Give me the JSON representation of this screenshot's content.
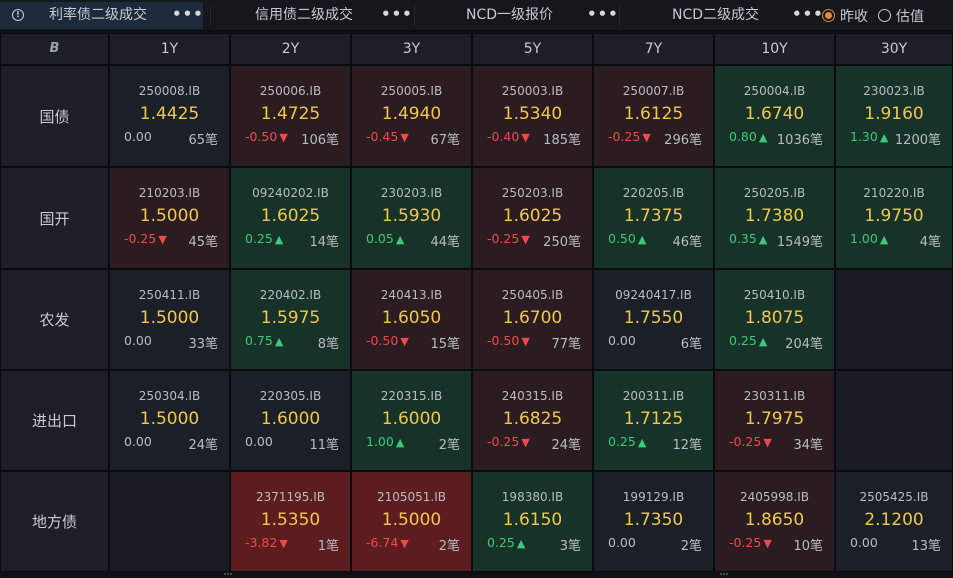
{
  "tabs": [
    {
      "label": "利率债二级成交",
      "more": "•••",
      "active": true
    },
    {
      "label": "信用债二级成交",
      "more": "•••",
      "active": false
    },
    {
      "label": "NCD一级报价",
      "more": "•••",
      "active": false
    },
    {
      "label": "NCD二级成交",
      "more": "•••",
      "active": false
    }
  ],
  "radio_options": [
    {
      "label": "昨收",
      "selected": true
    },
    {
      "label": "估值",
      "selected": false
    }
  ],
  "corner_label": "B",
  "columns": [
    "1Y",
    "2Y",
    "3Y",
    "5Y",
    "7Y",
    "10Y",
    "30Y"
  ],
  "rows": [
    {
      "label": "国债",
      "cells": [
        {
          "code": "250008.IB",
          "yield": "1.4425",
          "change": "0.00",
          "dir": "flat",
          "count": "65笔",
          "tone": "neutral"
        },
        {
          "code": "250006.IB",
          "yield": "1.4725",
          "change": "-0.50",
          "dir": "down",
          "count": "106笔",
          "tone": "red"
        },
        {
          "code": "250005.IB",
          "yield": "1.4940",
          "change": "-0.45",
          "dir": "down",
          "count": "67笔",
          "tone": "red"
        },
        {
          "code": "250003.IB",
          "yield": "1.5340",
          "change": "-0.40",
          "dir": "down",
          "count": "185笔",
          "tone": "red"
        },
        {
          "code": "250007.IB",
          "yield": "1.6125",
          "change": "-0.25",
          "dir": "down",
          "count": "296笔",
          "tone": "red"
        },
        {
          "code": "250004.IB",
          "yield": "1.6740",
          "change": "0.80",
          "dir": "up",
          "count": "1036笔",
          "tone": "green"
        },
        {
          "code": "230023.IB",
          "yield": "1.9160",
          "change": "1.30",
          "dir": "up",
          "count": "1200笔",
          "tone": "green"
        }
      ]
    },
    {
      "label": "国开",
      "cells": [
        {
          "code": "210203.IB",
          "yield": "1.5000",
          "change": "-0.25",
          "dir": "down",
          "count": "45笔",
          "tone": "red"
        },
        {
          "code": "09240202.IB",
          "yield": "1.6025",
          "change": "0.25",
          "dir": "up",
          "count": "14笔",
          "tone": "green"
        },
        {
          "code": "230203.IB",
          "yield": "1.5930",
          "change": "0.05",
          "dir": "up",
          "count": "44笔",
          "tone": "green"
        },
        {
          "code": "250203.IB",
          "yield": "1.6025",
          "change": "-0.25",
          "dir": "down",
          "count": "250笔",
          "tone": "red"
        },
        {
          "code": "220205.IB",
          "yield": "1.7375",
          "change": "0.50",
          "dir": "up",
          "count": "46笔",
          "tone": "green"
        },
        {
          "code": "250205.IB",
          "yield": "1.7380",
          "change": "0.35",
          "dir": "up",
          "count": "1549笔",
          "tone": "green"
        },
        {
          "code": "210220.IB",
          "yield": "1.9750",
          "change": "1.00",
          "dir": "up",
          "count": "4笔",
          "tone": "green"
        }
      ]
    },
    {
      "label": "农发",
      "cells": [
        {
          "code": "250411.IB",
          "yield": "1.5000",
          "change": "0.00",
          "dir": "flat",
          "count": "33笔",
          "tone": "neutral"
        },
        {
          "code": "220402.IB",
          "yield": "1.5975",
          "change": "0.75",
          "dir": "up",
          "count": "8笔",
          "tone": "green"
        },
        {
          "code": "240413.IB",
          "yield": "1.6050",
          "change": "-0.50",
          "dir": "down",
          "count": "15笔",
          "tone": "red"
        },
        {
          "code": "250405.IB",
          "yield": "1.6700",
          "change": "-0.50",
          "dir": "down",
          "count": "77笔",
          "tone": "red"
        },
        {
          "code": "09240417.IB",
          "yield": "1.7550",
          "change": "0.00",
          "dir": "flat",
          "count": "6笔",
          "tone": "neutral"
        },
        {
          "code": "250410.IB",
          "yield": "1.8075",
          "change": "0.25",
          "dir": "up",
          "count": "204笔",
          "tone": "green"
        },
        null
      ]
    },
    {
      "label": "进出口",
      "cells": [
        {
          "code": "250304.IB",
          "yield": "1.5000",
          "change": "0.00",
          "dir": "flat",
          "count": "24笔",
          "tone": "neutral"
        },
        {
          "code": "220305.IB",
          "yield": "1.6000",
          "change": "0.00",
          "dir": "flat",
          "count": "11笔",
          "tone": "neutral"
        },
        {
          "code": "220315.IB",
          "yield": "1.6000",
          "change": "1.00",
          "dir": "up",
          "count": "2笔",
          "tone": "green"
        },
        {
          "code": "240315.IB",
          "yield": "1.6825",
          "change": "-0.25",
          "dir": "down",
          "count": "24笔",
          "tone": "red"
        },
        {
          "code": "200311.IB",
          "yield": "1.7125",
          "change": "0.25",
          "dir": "up",
          "count": "12笔",
          "tone": "green"
        },
        {
          "code": "230311.IB",
          "yield": "1.7975",
          "change": "-0.25",
          "dir": "down",
          "count": "34笔",
          "tone": "red"
        },
        null
      ]
    },
    {
      "label": "地方债",
      "cells": [
        null,
        {
          "code": "2371195.IB",
          "yield": "1.5350",
          "change": "-3.82",
          "dir": "down",
          "count": "1笔",
          "tone": "red2"
        },
        {
          "code": "2105051.IB",
          "yield": "1.5000",
          "change": "-6.74",
          "dir": "down",
          "count": "2笔",
          "tone": "red2"
        },
        {
          "code": "198380.IB",
          "yield": "1.6150",
          "change": "0.25",
          "dir": "up",
          "count": "3笔",
          "tone": "green"
        },
        {
          "code": "199129.IB",
          "yield": "1.7350",
          "change": "0.00",
          "dir": "flat",
          "count": "2笔",
          "tone": "neutral"
        },
        {
          "code": "2405998.IB",
          "yield": "1.8650",
          "change": "-0.25",
          "dir": "down",
          "count": "10笔",
          "tone": "red"
        },
        {
          "code": "2505425.IB",
          "yield": "2.1200",
          "change": "0.00",
          "dir": "flat",
          "count": "13笔",
          "tone": "neutral"
        }
      ]
    }
  ],
  "colors": {
    "yield": "#f2c74a",
    "up": "#3ec97a",
    "down": "#f04a4a",
    "accent": "#e8873a"
  }
}
